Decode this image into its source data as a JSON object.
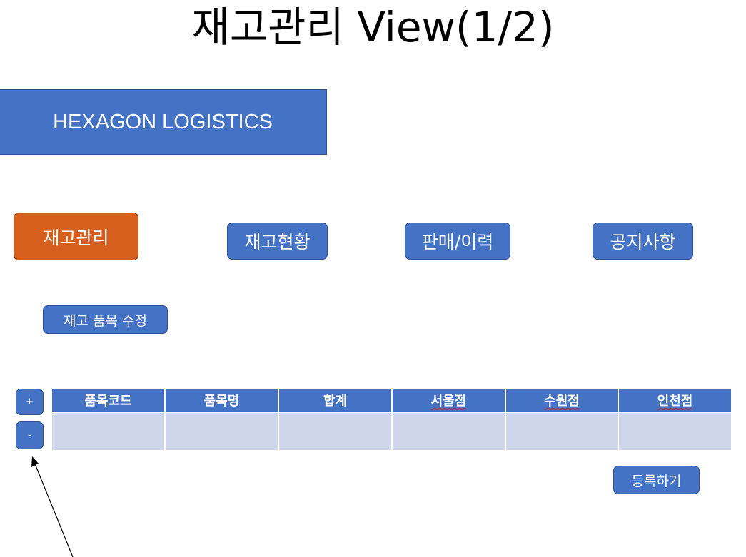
{
  "slide": {
    "title": "재고관리 View(1/2)"
  },
  "brand": {
    "name": "HEXAGON LOGISTICS"
  },
  "nav": {
    "items": [
      {
        "label": "재고관리",
        "active": true
      },
      {
        "label": "재고현황",
        "active": false
      },
      {
        "label": "판매/이력",
        "active": false
      },
      {
        "label": "공지사항",
        "active": false
      }
    ]
  },
  "actions": {
    "edit_items_label": "재고 품목 수정",
    "add_row_label": "+",
    "remove_row_label": "-",
    "register_label": "등록하기"
  },
  "table": {
    "columns": [
      "품목코드",
      "품목명",
      "합계",
      "서울점",
      "수원점",
      "인천점"
    ],
    "rows": [
      [
        "",
        "",
        "",
        "",
        "",
        ""
      ]
    ]
  },
  "colors": {
    "primary": "#4472c4",
    "active": "#d75f1e",
    "row_fill": "#cfd5ea"
  }
}
